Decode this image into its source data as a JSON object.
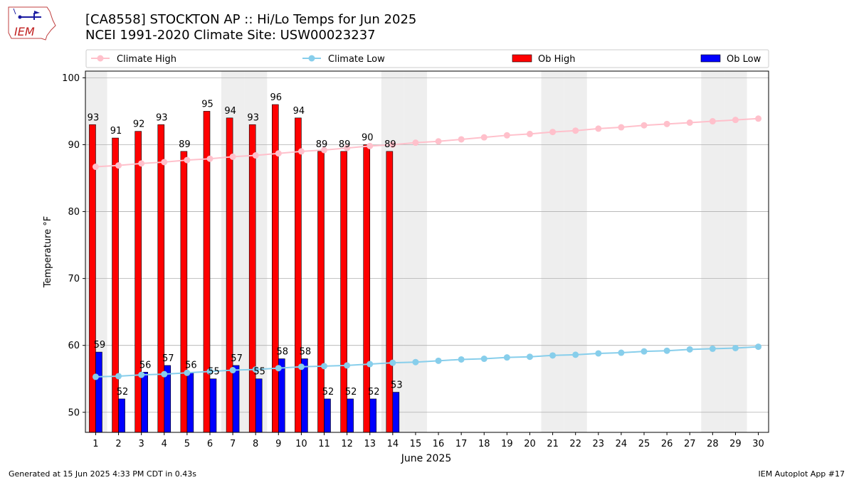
{
  "header": {
    "title_line1": "[CA8558] STOCKTON AP :: Hi/Lo Temps for Jun 2025",
    "title_line2": "NCEI 1991-2020 Climate Site: USW00023237"
  },
  "logo": {
    "text": "IEM",
    "icon": "iowa-state-map-logo"
  },
  "footer": {
    "left": "Generated at 15 Jun 2025 4:33 PM CDT in 0.43s",
    "right": "IEM Autoplot App #17"
  },
  "chart_data": {
    "type": "bar",
    "xlabel": "June 2025",
    "ylabel": "Temperature °F",
    "ylim": [
      47,
      101
    ],
    "yticks": [
      50,
      60,
      70,
      80,
      90,
      100
    ],
    "xticks": [
      "1",
      "2",
      "3",
      "4",
      "5",
      "6",
      "7",
      "8",
      "9",
      "10",
      "11",
      "12",
      "13",
      "14",
      "15",
      "16",
      "17",
      "18",
      "19",
      "20",
      "21",
      "22",
      "23",
      "24",
      "25",
      "26",
      "27",
      "28",
      "29",
      "30"
    ],
    "grid": "horizontal",
    "legend_placement": "top",
    "weekend_shading_days": [
      1,
      7,
      8,
      14,
      15,
      21,
      22,
      28,
      29
    ],
    "series": [
      {
        "name": "Climate High",
        "kind": "line",
        "color": "#ffc0cb",
        "days": [
          1,
          2,
          3,
          4,
          5,
          6,
          7,
          8,
          9,
          10,
          11,
          12,
          13,
          14,
          15,
          16,
          17,
          18,
          19,
          20,
          21,
          22,
          23,
          24,
          25,
          26,
          27,
          28,
          29,
          30
        ],
        "values": [
          86.7,
          86.9,
          87.2,
          87.4,
          87.7,
          87.9,
          88.2,
          88.4,
          88.7,
          89.0,
          89.2,
          89.5,
          89.8,
          90.0,
          90.3,
          90.5,
          90.8,
          91.1,
          91.4,
          91.6,
          91.9,
          92.1,
          92.4,
          92.6,
          92.9,
          93.1,
          93.3,
          93.5,
          93.7,
          93.9
        ]
      },
      {
        "name": "Climate Low",
        "kind": "line",
        "color": "#87ceeb",
        "days": [
          1,
          2,
          3,
          4,
          5,
          6,
          7,
          8,
          9,
          10,
          11,
          12,
          13,
          14,
          15,
          16,
          17,
          18,
          19,
          20,
          21,
          22,
          23,
          24,
          25,
          26,
          27,
          28,
          29,
          30
        ],
        "values": [
          55.3,
          55.4,
          55.6,
          55.7,
          55.9,
          56.1,
          56.3,
          56.4,
          56.6,
          56.8,
          56.9,
          57.0,
          57.2,
          57.4,
          57.5,
          57.7,
          57.9,
          58.0,
          58.2,
          58.3,
          58.5,
          58.6,
          58.8,
          58.9,
          59.1,
          59.2,
          59.4,
          59.5,
          59.6,
          59.8
        ]
      },
      {
        "name": "Ob High",
        "kind": "bar",
        "color": "#ff0000",
        "days": [
          1,
          2,
          3,
          4,
          5,
          6,
          7,
          8,
          9,
          10,
          11,
          12,
          13,
          14
        ],
        "values": [
          93,
          91,
          92,
          93,
          89,
          95,
          94,
          93,
          96,
          94,
          89,
          89,
          90,
          89
        ]
      },
      {
        "name": "Ob Low",
        "kind": "bar",
        "color": "#0000ff",
        "days": [
          1,
          2,
          3,
          4,
          5,
          6,
          7,
          8,
          9,
          10,
          11,
          12,
          13,
          14
        ],
        "values": [
          59,
          52,
          56,
          57,
          56,
          55,
          57,
          55,
          58,
          58,
          52,
          52,
          52,
          53
        ]
      }
    ]
  }
}
